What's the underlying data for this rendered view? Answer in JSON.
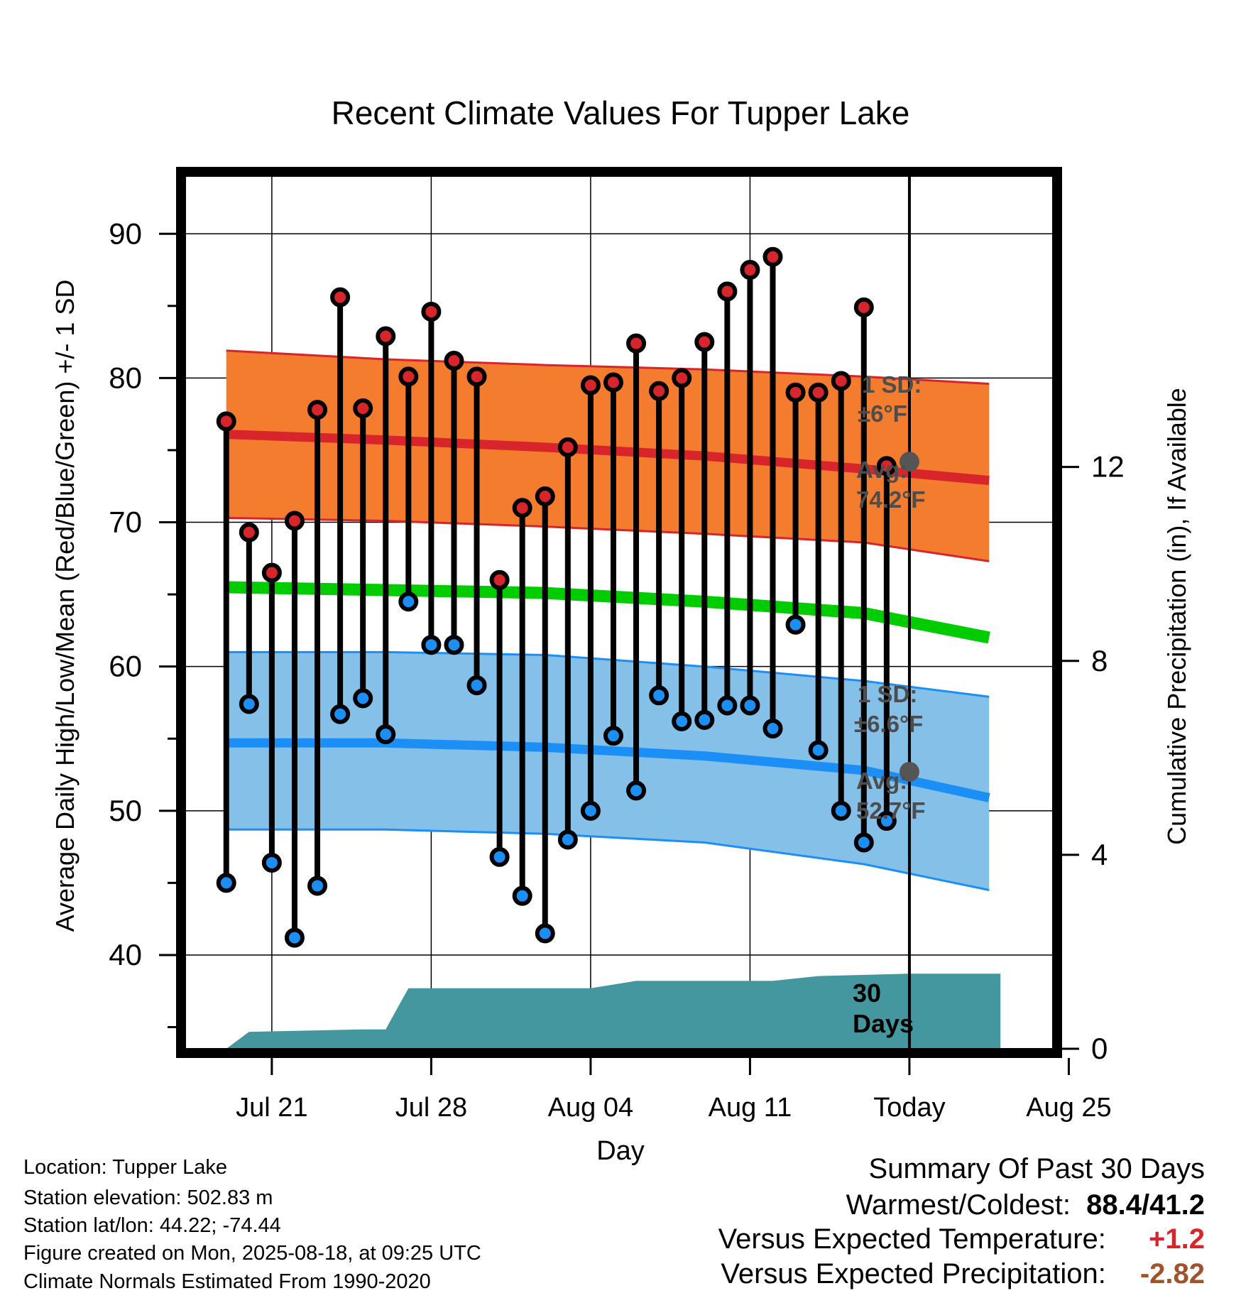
{
  "chart_data": {
    "type": "line",
    "title": "Recent Climate Values For Tupper Lake",
    "xlabel": "Day",
    "ylabel": "Average Daily High/Low/Mean (Red/Blue/Green) +/- 1 SD",
    "y2label": "Cumulative Precipitation (in), If Available",
    "ylim": [
      33.5,
      94
    ],
    "y2lim": [
      0,
      18
    ],
    "yticks": [
      40,
      50,
      60,
      70,
      80,
      90
    ],
    "y2ticks": [
      0,
      4,
      8,
      12
    ],
    "xlim": [
      -3.8,
      34.3
    ],
    "x_ticks": [
      {
        "day": 0,
        "label": "Jul 21"
      },
      {
        "day": 7,
        "label": "Jul 28"
      },
      {
        "day": 14,
        "label": "Aug 04"
      },
      {
        "day": 21,
        "label": "Aug 11"
      },
      {
        "day": 28,
        "label": "Today"
      },
      {
        "day": 35,
        "label": "Aug 25"
      }
    ],
    "today_day": 28,
    "grid": true,
    "daily_high": [
      77.0,
      69.3,
      66.5,
      70.1,
      77.8,
      85.6,
      77.9,
      82.9,
      80.1,
      84.6,
      81.2,
      80.1,
      66.0,
      71.0,
      71.8,
      75.2,
      79.5,
      79.7,
      82.4,
      79.1,
      80.0,
      82.5,
      86.0,
      87.5,
      88.4,
      79.0,
      79.0,
      79.8,
      84.9,
      73.9
    ],
    "daily_low": [
      45.0,
      57.4,
      46.4,
      41.2,
      44.8,
      56.7,
      57.8,
      55.3,
      64.5,
      61.5,
      61.5,
      58.7,
      46.8,
      44.1,
      41.5,
      48.0,
      50.0,
      55.2,
      51.4,
      58.0,
      56.2,
      56.3,
      57.3,
      57.3,
      55.7,
      62.9,
      54.2,
      50.0,
      47.8,
      49.3
    ],
    "normal_high": {
      "days": [
        -2,
        5,
        12,
        19,
        26,
        31.5
      ],
      "values": [
        76.1,
        75.7,
        75.2,
        74.6,
        73.7,
        72.9
      ]
    },
    "normal_high_band": {
      "upper": [
        81.9,
        81.3,
        80.9,
        80.6,
        80.1,
        79.6
      ],
      "lower": [
        70.3,
        70.1,
        69.7,
        69.2,
        68.6,
        67.3
      ]
    },
    "normal_mean": {
      "days": [
        -2,
        5,
        12,
        19,
        26,
        31.5
      ],
      "values": [
        65.5,
        65.3,
        65.1,
        64.5,
        63.7,
        62.0
      ]
    },
    "normal_low": {
      "days": [
        -2,
        5,
        12,
        19,
        26,
        31.5
      ],
      "values": [
        54.7,
        54.7,
        54.4,
        53.8,
        52.8,
        50.9
      ]
    },
    "normal_low_band": {
      "upper": [
        61.0,
        61.0,
        60.8,
        60.0,
        59.0,
        57.9
      ],
      "lower": [
        48.7,
        48.7,
        48.4,
        47.8,
        46.3,
        44.5
      ]
    },
    "precip_cumulative": {
      "days": [
        -2,
        -1,
        4,
        5,
        6,
        14,
        16,
        22,
        24,
        28,
        32
      ],
      "values": [
        0.0,
        0.35,
        0.4,
        0.4,
        1.25,
        1.25,
        1.4,
        1.4,
        1.5,
        1.55,
        1.55
      ]
    },
    "annotations": {
      "high_sd": "1 SD:",
      "high_sd_value": "±6°F",
      "high_avg": "Avg:",
      "high_avg_value": "74.2°F",
      "high_avg_marker": 74.2,
      "low_sd": "1 SD:",
      "low_sd_value": "±6.6°F",
      "low_avg": "Avg:",
      "low_avg_value": "52.7°F",
      "low_avg_marker": 52.7,
      "days_num": "30",
      "days_word": "Days"
    },
    "colors": {
      "high_band": "#f47c2f",
      "high_line": "#d7252b",
      "mean_line": "#00cc00",
      "low_band": "#85c0e9",
      "low_line": "#1c8ff7",
      "precip": "#45979f",
      "high_dot": "#d7252b",
      "low_dot": "#1c8ff7",
      "annotation": "#4d4d4d"
    }
  },
  "info": {
    "location": "Location: Tupper Lake",
    "elevation": "Station elevation: 502.83 m",
    "latlon": "Station lat/lon: 44.22; -74.44",
    "created": "Figure created on Mon, 2025-08-18, at 09:25 UTC",
    "normals": "Climate Normals Estimated From 1990-2020"
  },
  "summary": {
    "title": "Summary Of Past 30 Days",
    "warm_cold_label": "Warmest/Coldest:",
    "warm_cold_value": "88.4/41.2",
    "temp_label": "Versus Expected Temperature:",
    "temp_value": "+1.2",
    "temp_color": "#d7252b",
    "precip_label": "Versus Expected Precipitation:",
    "precip_value": "-2.82",
    "precip_color": "#a0522d"
  }
}
